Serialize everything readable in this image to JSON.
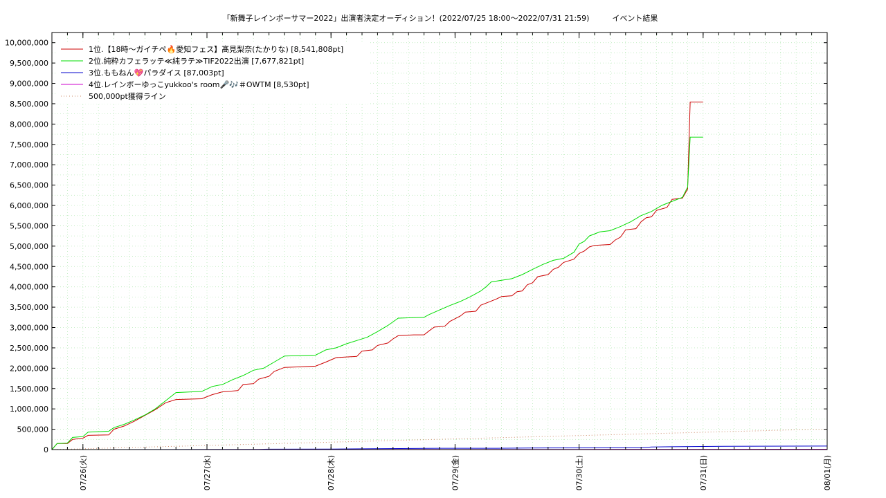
{
  "chart_data": {
    "type": "line",
    "title": "「新舞子レインボーサマー2022」出演者決定オーディション！(2022/07/25 18:00～2022/07/31 21:59)　　　イベント結果",
    "xlabel": "",
    "ylabel": "",
    "ylim": [
      0,
      10250000
    ],
    "x_range": [
      "2022-07-25 18:00",
      "2022-08-01 00:00"
    ],
    "y_ticks": [
      "0",
      "500,000",
      "1,000,000",
      "1,500,000",
      "2,000,000",
      "2,500,000",
      "3,000,000",
      "3,500,000",
      "4,000,000",
      "4,500,000",
      "5,000,000",
      "5,500,000",
      "6,000,000",
      "6,500,000",
      "7,000,000",
      "7,500,000",
      "8,000,000",
      "8,500,000",
      "9,000,000",
      "9,500,000",
      "10,000,000"
    ],
    "x_ticks": [
      {
        "date": "2022-07-26",
        "label": "07/26(火)"
      },
      {
        "date": "2022-07-27",
        "label": "07/27(水)"
      },
      {
        "date": "2022-07-28",
        "label": "07/28(木)"
      },
      {
        "date": "2022-07-29",
        "label": "07/29(金)"
      },
      {
        "date": "2022-07-30",
        "label": "07/30(土)"
      },
      {
        "date": "2022-07-31",
        "label": "07/31(日)"
      },
      {
        "date": "2022-08-01",
        "label": "08/01(月)"
      }
    ],
    "grid": true,
    "legend_position": "top-left",
    "series": [
      {
        "name": "1位.【18時～ガイチペ🔥愛知フェス】髙見梨奈(たかりな) [8,541,808pt]",
        "color": "#cc0000",
        "style": "solid",
        "points": [
          [
            "2022-07-25 18:00",
            0
          ],
          [
            "2022-07-25 19:00",
            150000
          ],
          [
            "2022-07-25 21:00",
            150000
          ],
          [
            "2022-07-25 22:00",
            250000
          ],
          [
            "2022-07-26 00:00",
            280000
          ],
          [
            "2022-07-26 01:00",
            350000
          ],
          [
            "2022-07-26 05:00",
            360000
          ],
          [
            "2022-07-26 06:00",
            500000
          ],
          [
            "2022-07-26 08:00",
            580000
          ],
          [
            "2022-07-26 10:00",
            700000
          ],
          [
            "2022-07-26 12:00",
            840000
          ],
          [
            "2022-07-26 14:00",
            980000
          ],
          [
            "2022-07-26 16:00",
            1150000
          ],
          [
            "2022-07-26 18:00",
            1230000
          ],
          [
            "2022-07-26 23:00",
            1250000
          ],
          [
            "2022-07-27 01:00",
            1350000
          ],
          [
            "2022-07-27 03:00",
            1420000
          ],
          [
            "2022-07-27 06:00",
            1450000
          ],
          [
            "2022-07-27 07:00",
            1600000
          ],
          [
            "2022-07-27 09:00",
            1620000
          ],
          [
            "2022-07-27 10:00",
            1730000
          ],
          [
            "2022-07-27 12:00",
            1800000
          ],
          [
            "2022-07-27 13:00",
            1920000
          ],
          [
            "2022-07-27 15:00",
            2020000
          ],
          [
            "2022-07-27 21:00",
            2050000
          ],
          [
            "2022-07-27 23:00",
            2150000
          ],
          [
            "2022-07-28 01:00",
            2260000
          ],
          [
            "2022-07-28 05:00",
            2290000
          ],
          [
            "2022-07-28 06:00",
            2420000
          ],
          [
            "2022-07-28 08:00",
            2450000
          ],
          [
            "2022-07-28 09:00",
            2560000
          ],
          [
            "2022-07-28 11:00",
            2620000
          ],
          [
            "2022-07-28 12:00",
            2720000
          ],
          [
            "2022-07-28 13:00",
            2800000
          ],
          [
            "2022-07-28 16:00",
            2820000
          ],
          [
            "2022-07-28 18:00",
            2820000
          ],
          [
            "2022-07-28 19:00",
            2920000
          ],
          [
            "2022-07-28 20:00",
            3010000
          ],
          [
            "2022-07-28 22:00",
            3030000
          ],
          [
            "2022-07-28 23:00",
            3150000
          ],
          [
            "2022-07-29 01:00",
            3280000
          ],
          [
            "2022-07-29 02:00",
            3380000
          ],
          [
            "2022-07-29 04:00",
            3400000
          ],
          [
            "2022-07-29 05:00",
            3550000
          ],
          [
            "2022-07-29 07:00",
            3650000
          ],
          [
            "2022-07-29 08:00",
            3700000
          ],
          [
            "2022-07-29 09:00",
            3760000
          ],
          [
            "2022-07-29 11:00",
            3780000
          ],
          [
            "2022-07-29 12:00",
            3880000
          ],
          [
            "2022-07-29 13:00",
            3900000
          ],
          [
            "2022-07-29 14:00",
            4050000
          ],
          [
            "2022-07-29 15:00",
            4100000
          ],
          [
            "2022-07-29 16:00",
            4250000
          ],
          [
            "2022-07-29 18:00",
            4300000
          ],
          [
            "2022-07-29 19:00",
            4430000
          ],
          [
            "2022-07-29 20:00",
            4480000
          ],
          [
            "2022-07-29 21:00",
            4600000
          ],
          [
            "2022-07-29 23:00",
            4680000
          ],
          [
            "2022-07-30 00:00",
            4820000
          ],
          [
            "2022-07-30 01:00",
            4880000
          ],
          [
            "2022-07-30 02:00",
            4980000
          ],
          [
            "2022-07-30 03:00",
            5020000
          ],
          [
            "2022-07-30 06:00",
            5040000
          ],
          [
            "2022-07-30 07:00",
            5150000
          ],
          [
            "2022-07-30 08:00",
            5220000
          ],
          [
            "2022-07-30 09:00",
            5400000
          ],
          [
            "2022-07-30 11:00",
            5430000
          ],
          [
            "2022-07-30 12:00",
            5600000
          ],
          [
            "2022-07-30 13:00",
            5700000
          ],
          [
            "2022-07-30 14:00",
            5720000
          ],
          [
            "2022-07-30 15:00",
            5880000
          ],
          [
            "2022-07-30 17:00",
            5950000
          ],
          [
            "2022-07-30 18:00",
            6150000
          ],
          [
            "2022-07-30 20:00",
            6180000
          ],
          [
            "2022-07-30 21:00",
            6400000
          ],
          [
            "2022-07-30 21:30",
            8541808
          ],
          [
            "2022-07-31 00:00",
            8541808
          ]
        ]
      },
      {
        "name": "2位.純粋カフェラッテ≪純ラテ≫TIF2022出演 [7,677,821pt]",
        "color": "#00dd00",
        "style": "solid",
        "points": [
          [
            "2022-07-25 18:00",
            0
          ],
          [
            "2022-07-25 19:00",
            150000
          ],
          [
            "2022-07-25 21:00",
            160000
          ],
          [
            "2022-07-25 22:00",
            300000
          ],
          [
            "2022-07-26 00:00",
            320000
          ],
          [
            "2022-07-26 01:00",
            430000
          ],
          [
            "2022-07-26 05:00",
            450000
          ],
          [
            "2022-07-26 06:00",
            540000
          ],
          [
            "2022-07-26 08:00",
            620000
          ],
          [
            "2022-07-26 10:00",
            730000
          ],
          [
            "2022-07-26 12:00",
            850000
          ],
          [
            "2022-07-26 14:00",
            1000000
          ],
          [
            "2022-07-26 16:00",
            1200000
          ],
          [
            "2022-07-26 18:00",
            1400000
          ],
          [
            "2022-07-26 23:00",
            1430000
          ],
          [
            "2022-07-27 01:00",
            1550000
          ],
          [
            "2022-07-27 03:00",
            1600000
          ],
          [
            "2022-07-27 05:00",
            1720000
          ],
          [
            "2022-07-27 07:00",
            1820000
          ],
          [
            "2022-07-27 09:00",
            1950000
          ],
          [
            "2022-07-27 11:00",
            2000000
          ],
          [
            "2022-07-27 13:00",
            2150000
          ],
          [
            "2022-07-27 15:00",
            2300000
          ],
          [
            "2022-07-27 21:00",
            2320000
          ],
          [
            "2022-07-27 23:00",
            2450000
          ],
          [
            "2022-07-28 01:00",
            2500000
          ],
          [
            "2022-07-28 03:00",
            2600000
          ],
          [
            "2022-07-28 05:00",
            2680000
          ],
          [
            "2022-07-28 07:00",
            2760000
          ],
          [
            "2022-07-28 09:00",
            2900000
          ],
          [
            "2022-07-28 11:00",
            3050000
          ],
          [
            "2022-07-28 13:00",
            3230000
          ],
          [
            "2022-07-28 18:00",
            3250000
          ],
          [
            "2022-07-28 19:00",
            3320000
          ],
          [
            "2022-07-28 21:00",
            3430000
          ],
          [
            "2022-07-28 23:00",
            3540000
          ],
          [
            "2022-07-29 01:00",
            3640000
          ],
          [
            "2022-07-29 03:00",
            3760000
          ],
          [
            "2022-07-29 05:00",
            3900000
          ],
          [
            "2022-07-29 06:00",
            4000000
          ],
          [
            "2022-07-29 07:00",
            4120000
          ],
          [
            "2022-07-29 09:00",
            4160000
          ],
          [
            "2022-07-29 11:00",
            4200000
          ],
          [
            "2022-07-29 13:00",
            4300000
          ],
          [
            "2022-07-29 15:00",
            4430000
          ],
          [
            "2022-07-29 17:00",
            4550000
          ],
          [
            "2022-07-29 19:00",
            4650000
          ],
          [
            "2022-07-29 21:00",
            4700000
          ],
          [
            "2022-07-29 23:00",
            4850000
          ],
          [
            "2022-07-30 00:00",
            5050000
          ],
          [
            "2022-07-30 01:00",
            5120000
          ],
          [
            "2022-07-30 02:00",
            5250000
          ],
          [
            "2022-07-30 04:00",
            5350000
          ],
          [
            "2022-07-30 06:00",
            5380000
          ],
          [
            "2022-07-30 08:00",
            5480000
          ],
          [
            "2022-07-30 10:00",
            5600000
          ],
          [
            "2022-07-30 12:00",
            5750000
          ],
          [
            "2022-07-30 14:00",
            5850000
          ],
          [
            "2022-07-30 16:00",
            6000000
          ],
          [
            "2022-07-30 18:00",
            6100000
          ],
          [
            "2022-07-30 20:00",
            6200000
          ],
          [
            "2022-07-30 21:00",
            6450000
          ],
          [
            "2022-07-30 21:30",
            7677821
          ],
          [
            "2022-07-31 00:00",
            7677821
          ]
        ]
      },
      {
        "name": "3位.ももねん💖パラダイス [87,003pt]",
        "color": "#0000cc",
        "style": "solid",
        "points": [
          [
            "2022-07-25 18:00",
            0
          ],
          [
            "2022-07-27 10:00",
            5000
          ],
          [
            "2022-07-27 12:00",
            10000
          ],
          [
            "2022-07-28 00:00",
            12000
          ],
          [
            "2022-07-28 18:00",
            30000
          ],
          [
            "2022-07-29 08:00",
            32000
          ],
          [
            "2022-07-29 18:00",
            40000
          ],
          [
            "2022-07-30 12:00",
            42000
          ],
          [
            "2022-07-30 14:00",
            65000
          ],
          [
            "2022-07-30 18:00",
            70000
          ],
          [
            "2022-07-31 04:00",
            80000
          ],
          [
            "2022-08-01 00:00",
            87003
          ]
        ]
      },
      {
        "name": "4位.レインボーゆっこyukkoo's room🎤🎶＃OWTM [8,530pt]",
        "color": "#cc00cc",
        "style": "solid",
        "points": [
          [
            "2022-07-25 18:00",
            0
          ],
          [
            "2022-07-28 00:00",
            2000
          ],
          [
            "2022-07-30 00:00",
            5000
          ],
          [
            "2022-08-01 00:00",
            8530
          ]
        ]
      },
      {
        "name": "500,000pt獲得ライン",
        "color": "#cc8866",
        "style": "dotted",
        "points": [
          [
            "2022-07-25 18:00",
            0
          ],
          [
            "2022-07-31 21:59",
            500000
          ],
          [
            "2022-08-01 00:00",
            500000
          ]
        ]
      }
    ]
  }
}
